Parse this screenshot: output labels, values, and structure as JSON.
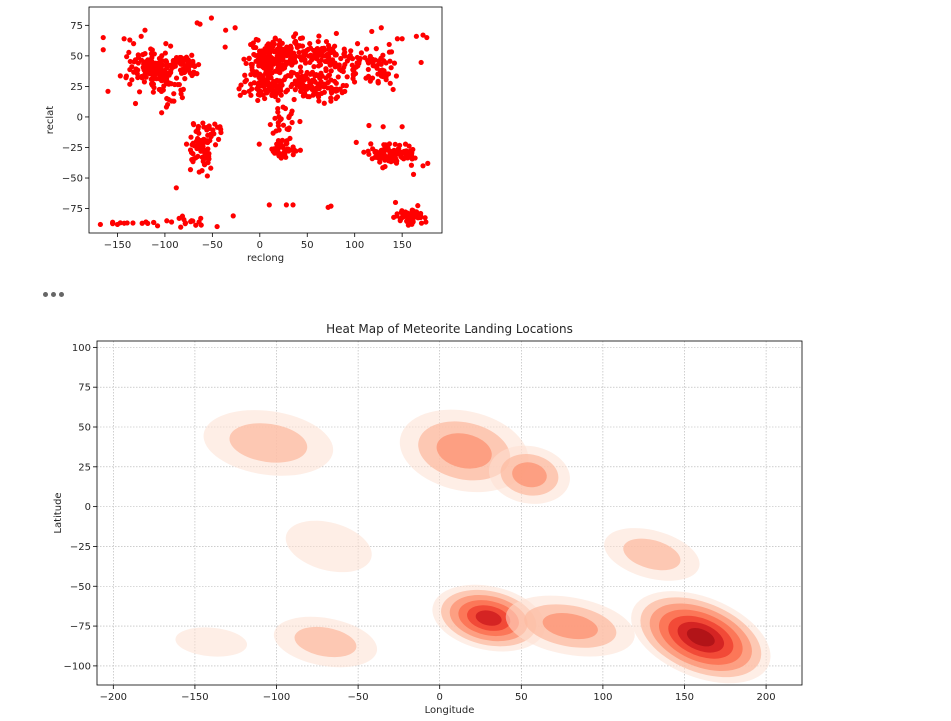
{
  "chart_data": [
    {
      "type": "scatter",
      "xlabel": "reclong",
      "ylabel": "reclat",
      "xlim": [
        -180,
        192
      ],
      "ylim": [
        -95,
        90
      ],
      "xticks": [
        -150,
        -100,
        -50,
        0,
        50,
        100,
        150
      ],
      "yticks": [
        -75,
        -50,
        -25,
        0,
        25,
        50,
        75
      ],
      "grid": false,
      "color": "#ff0000",
      "clusters": [
        {
          "x": -110,
          "y": 40,
          "sx": 14,
          "sy": 7,
          "n": 150
        },
        {
          "x": -80,
          "y": 42,
          "sx": 8,
          "sy": 5,
          "n": 45
        },
        {
          "x": -95,
          "y": 22,
          "sx": 10,
          "sy": 6,
          "n": 25
        },
        {
          "x": -63,
          "y": -27,
          "sx": 6,
          "sy": 10,
          "n": 70
        },
        {
          "x": -50,
          "y": -10,
          "sx": 6,
          "sy": 5,
          "n": 12
        },
        {
          "x": 10,
          "y": 47,
          "sx": 12,
          "sy": 7,
          "n": 140
        },
        {
          "x": 40,
          "y": 53,
          "sx": 22,
          "sy": 6,
          "n": 120
        },
        {
          "x": 90,
          "y": 45,
          "sx": 25,
          "sy": 8,
          "n": 100
        },
        {
          "x": 5,
          "y": 25,
          "sx": 12,
          "sy": 6,
          "n": 90
        },
        {
          "x": 50,
          "y": 25,
          "sx": 12,
          "sy": 7,
          "n": 70
        },
        {
          "x": 78,
          "y": 22,
          "sx": 6,
          "sy": 5,
          "n": 25
        },
        {
          "x": 25,
          "y": -5,
          "sx": 6,
          "sy": 10,
          "n": 30
        },
        {
          "x": 25,
          "y": -28,
          "sx": 9,
          "sy": 4,
          "n": 40
        },
        {
          "x": 138,
          "y": -30,
          "sx": 13,
          "sy": 4,
          "n": 100
        },
        {
          "x": 130,
          "y": 35,
          "sx": 8,
          "sy": 6,
          "n": 30
        },
        {
          "x": 160,
          "y": -82,
          "sx": 7,
          "sy": 3,
          "n": 60
        },
        {
          "x": -130,
          "y": -87,
          "sx": 25,
          "sy": 1,
          "n": 10
        },
        {
          "x": -70,
          "y": -86,
          "sx": 12,
          "sy": 2,
          "n": 10
        }
      ],
      "points": [
        [
          -165,
          65
        ],
        [
          -165,
          55
        ],
        [
          -160,
          21
        ],
        [
          -143,
          64
        ],
        [
          -137,
          63
        ],
        [
          -133,
          60
        ],
        [
          -131,
          11
        ],
        [
          -121,
          71
        ],
        [
          -125,
          66
        ],
        [
          -99,
          60
        ],
        [
          -94,
          58
        ],
        [
          -66,
          77
        ],
        [
          -63,
          76
        ],
        [
          -51,
          81
        ],
        [
          -26,
          73
        ],
        [
          -36,
          71
        ],
        [
          128,
          73
        ],
        [
          118,
          70
        ],
        [
          145,
          64
        ],
        [
          150,
          64
        ],
        [
          165,
          66
        ],
        [
          172,
          67
        ],
        [
          176,
          65
        ],
        [
          -88,
          -58
        ],
        [
          -28,
          -81
        ],
        [
          -60,
          -5
        ],
        [
          -42,
          -8
        ],
        [
          115,
          -7
        ],
        [
          130,
          -8
        ],
        [
          150,
          -8
        ],
        [
          172,
          -40
        ],
        [
          177,
          -38
        ],
        [
          162,
          -47
        ],
        [
          143,
          -70
        ],
        [
          -168,
          -88
        ],
        [
          -150,
          -88
        ],
        [
          -155,
          -87
        ],
        [
          -124,
          -87
        ],
        [
          -120,
          -86
        ],
        [
          -98,
          -85
        ],
        [
          -93,
          -86
        ],
        [
          -85,
          -83
        ],
        [
          -80,
          -84
        ],
        [
          -72,
          -85
        ],
        [
          -64,
          -86
        ],
        [
          10,
          -72
        ],
        [
          28,
          -72
        ],
        [
          35,
          -72
        ],
        [
          75,
          -73
        ],
        [
          72,
          -74
        ],
        [
          175,
          -86
        ],
        [
          45,
          58
        ],
        [
          78,
          53
        ],
        [
          103,
          60
        ]
      ]
    },
    {
      "type": "heatmap",
      "title": "Heat Map of Meteorite Landing Locations",
      "xlabel": "Longitude",
      "ylabel": "Latitude",
      "xlim": [
        -210,
        222
      ],
      "ylim": [
        -112,
        104
      ],
      "xticks": [
        -200,
        -150,
        -100,
        -50,
        0,
        50,
        100,
        150,
        200
      ],
      "yticks": [
        -100,
        -75,
        -50,
        -25,
        0,
        25,
        50,
        75,
        100
      ],
      "grid": true,
      "colormap": [
        "#fee0d2",
        "#fcbba1",
        "#fc9272",
        "#fb6a4a",
        "#ef3b2c",
        "#cb181d",
        "#a50f15"
      ],
      "blobs": [
        {
          "x": -105,
          "y": 40,
          "rx": 40,
          "ry": 20,
          "angle": -8,
          "peak": 0.35
        },
        {
          "x": 15,
          "y": 35,
          "rx": 40,
          "ry": 25,
          "angle": -12,
          "peak": 0.4
        },
        {
          "x": 55,
          "y": 20,
          "rx": 25,
          "ry": 18,
          "angle": -10,
          "peak": 0.45
        },
        {
          "x": -68,
          "y": -25,
          "rx": 27,
          "ry": 15,
          "angle": -15,
          "peak": 0.2
        },
        {
          "x": 130,
          "y": -30,
          "rx": 30,
          "ry": 15,
          "angle": -15,
          "peak": 0.25
        },
        {
          "x": 30,
          "y": -70,
          "rx": 35,
          "ry": 20,
          "angle": -12,
          "peak": 0.9
        },
        {
          "x": 80,
          "y": -75,
          "rx": 40,
          "ry": 18,
          "angle": -10,
          "peak": 0.4
        },
        {
          "x": 160,
          "y": -82,
          "rx": 45,
          "ry": 25,
          "angle": -22,
          "peak": 1.0
        },
        {
          "x": -70,
          "y": -85,
          "rx": 32,
          "ry": 15,
          "angle": -10,
          "peak": 0.3
        },
        {
          "x": -140,
          "y": -85,
          "rx": 22,
          "ry": 9,
          "angle": -5,
          "peak": 0.15
        }
      ]
    }
  ]
}
